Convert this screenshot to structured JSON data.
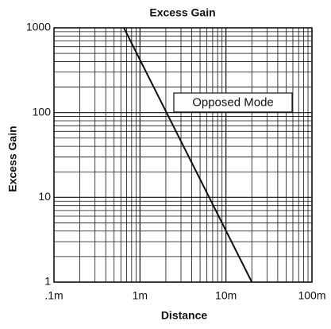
{
  "chart_data": {
    "type": "line",
    "title": "Excess Gain",
    "xlabel": "Distance",
    "ylabel": "Excess Gain",
    "annotation": "Opposed Mode",
    "x": [
      0.65,
      20
    ],
    "series": [
      {
        "name": "Opposed Mode",
        "color": "#111111",
        "values": [
          1000,
          1
        ]
      }
    ],
    "xscale": "log",
    "yscale": "log",
    "xlim": [
      0.1,
      100
    ],
    "ylim": [
      1,
      1000
    ],
    "xticks": [
      {
        "value": 0.1,
        "label": ".1m"
      },
      {
        "value": 1,
        "label": "1m"
      },
      {
        "value": 10,
        "label": "10m"
      },
      {
        "value": 100,
        "label": "100m"
      }
    ],
    "yticks": [
      1,
      10,
      100,
      1000
    ],
    "grid": true,
    "minor_grid": true
  }
}
